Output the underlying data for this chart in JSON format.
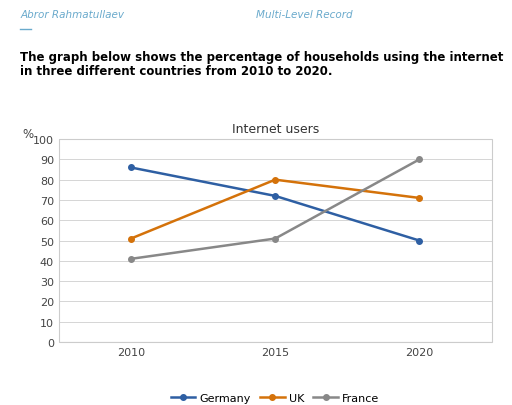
{
  "header_left": "Abror Rahmatullaev",
  "header_right": "Multi-Level Record",
  "description_line1": "The graph below shows the percentage of households using the internet",
  "description_line2": "in three different countries from 2010 to 2020.",
  "chart_title": "Internet users",
  "ylabel": "%",
  "years": [
    2010,
    2015,
    2020
  ],
  "series": {
    "Germany": {
      "values": [
        86,
        72,
        50
      ],
      "color": "#2e5fa3"
    },
    "UK": {
      "values": [
        51,
        80,
        71
      ],
      "color": "#d4720a"
    },
    "France": {
      "values": [
        41,
        51,
        90
      ],
      "color": "#888888"
    }
  },
  "xlim": [
    2007.5,
    2022.5
  ],
  "ylim": [
    0,
    100
  ],
  "yticks": [
    0,
    10,
    20,
    30,
    40,
    50,
    60,
    70,
    80,
    90,
    100
  ],
  "xticks": [
    2010,
    2015,
    2020
  ],
  "bg_color": "#ffffff",
  "plot_bg_color": "#ffffff",
  "border_color": "#cccccc",
  "grid_color": "#d5d5d5",
  "line_width": 1.8,
  "marker_size": 4,
  "header_color": "#6aaacc",
  "text_color": "#000000"
}
